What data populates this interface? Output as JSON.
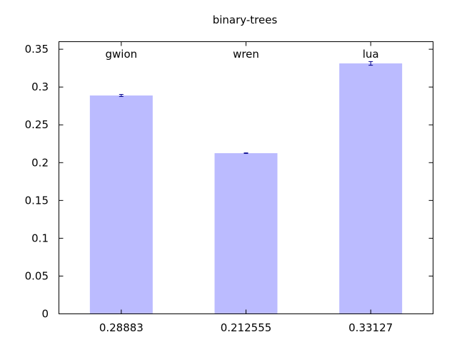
{
  "chart_data": {
    "type": "bar",
    "title": "binary-trees",
    "xlabel": "",
    "ylabel": "",
    "categories": [
      "gwion",
      "wren",
      "lua"
    ],
    "values": [
      0.28883,
      0.212555,
      0.33127
    ],
    "x_tick_labels": [
      "0.28883",
      "0.212555",
      "0.33127"
    ],
    "error_bars": [
      {
        "low": 0.2875,
        "high": 0.2902
      },
      {
        "low": 0.2122,
        "high": 0.2129
      },
      {
        "low": 0.3288,
        "high": 0.3337
      }
    ],
    "ylim": [
      0,
      0.36
    ],
    "yticks": [
      0,
      0.05,
      0.1,
      0.15,
      0.2,
      0.25,
      0.3,
      0.35
    ],
    "ytick_labels": [
      "0",
      "0.05",
      "0.1",
      "0.15",
      "0.2",
      "0.25",
      "0.3",
      "0.35"
    ],
    "grid": false,
    "legend": "none",
    "colors": {
      "bar": "#bbbbff",
      "error_bar": "#00008b",
      "axis": "#000000"
    }
  }
}
